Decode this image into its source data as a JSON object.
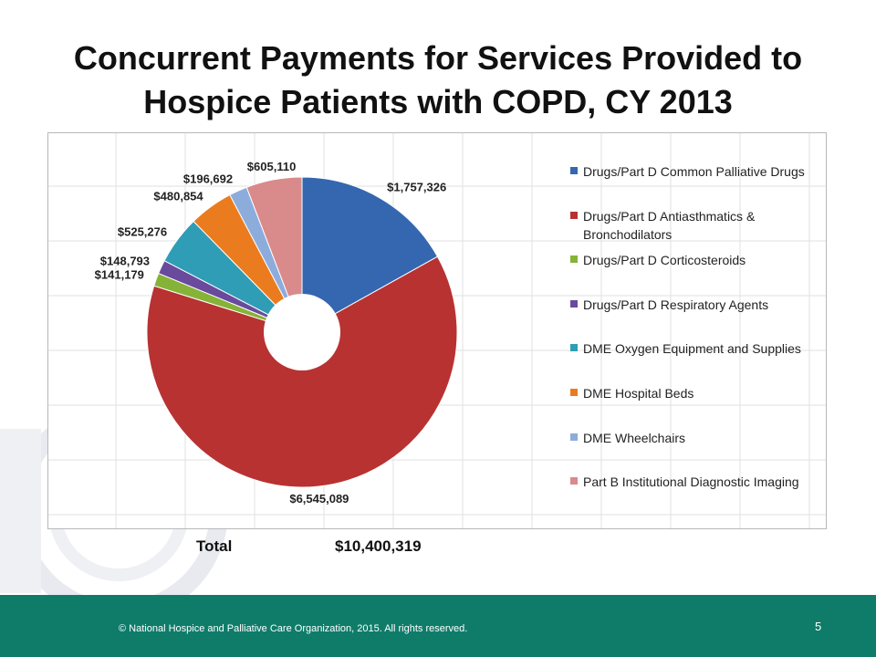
{
  "slide": {
    "title": "Concurrent Payments for Services Provided to Hospice Patients with COPD, CY 2013",
    "total_label": "Total",
    "total_value": "$10,400,319",
    "footer": "© National Hospice and Palliative Care Organization, 2015. All rights reserved.",
    "page_number": "5"
  },
  "chart_data": {
    "type": "pie",
    "title": "",
    "legend_position": "right",
    "grid": true,
    "slices": [
      {
        "label": "Drugs/Part D Common Palliative Drugs",
        "value": 1757326,
        "value_label": "$1,757,326",
        "color": "#3566b0"
      },
      {
        "label": "Drugs/Part D Antiasthmatics & Bronchodilators",
        "value": 6545089,
        "value_label": "$6,545,089",
        "color": "#b83232"
      },
      {
        "label": "Drugs/Part D Corticosteroids",
        "value": 141179,
        "value_label": "$141,179",
        "color": "#85b338"
      },
      {
        "label": "Drugs/Part D Respiratory Agents",
        "value": 148793,
        "value_label": "$148,793",
        "color": "#6a4a9c"
      },
      {
        "label": "DME Oxygen Equipment and Supplies",
        "value": 525276,
        "value_label": "$525,276",
        "color": "#2f9db5"
      },
      {
        "label": "DME Hospital Beds",
        "value": 480854,
        "value_label": "$480,854",
        "color": "#ea7c1f"
      },
      {
        "label": "DME Wheelchairs",
        "value": 196692,
        "value_label": "$196,692",
        "color": "#8cacdc"
      },
      {
        "label": "Part B Institutional Diagnostic Imaging",
        "value": 605110,
        "value_label": "$605,110",
        "color": "#d98a8a"
      }
    ]
  },
  "colors": {
    "footer_bar": "#0f7c6a",
    "frame_border": "#b8b8b8"
  }
}
